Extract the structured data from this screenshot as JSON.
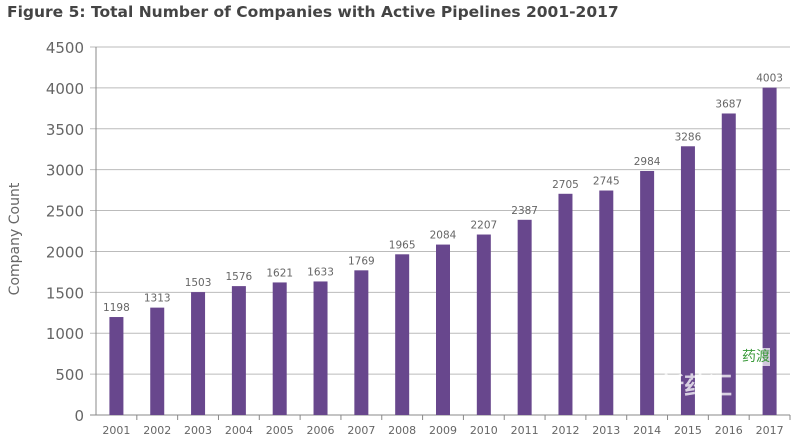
{
  "chart_data": {
    "type": "bar",
    "title": "Figure 5: Total Number of Companies with Active Pipelines 2001-2017",
    "xlabel": "",
    "ylabel": "Company Count",
    "categories": [
      "2001",
      "2002",
      "2003",
      "2004",
      "2005",
      "2006",
      "2007",
      "2008",
      "2009",
      "2010",
      "2011",
      "2012",
      "2013",
      "2014",
      "2015",
      "2016",
      "2017"
    ],
    "values": [
      1198,
      1313,
      1503,
      1576,
      1621,
      1633,
      1769,
      1965,
      2084,
      2207,
      2387,
      2705,
      2745,
      2984,
      3286,
      3687,
      4003
    ],
    "ylim": [
      0,
      4500
    ],
    "yticks": [
      0,
      500,
      1000,
      1500,
      2000,
      2500,
      3000,
      3500,
      4000,
      4500
    ],
    "grid": true,
    "legend": "none",
    "bar_color": "#68478d",
    "data_labels": true
  },
  "watermark": {
    "text1": "新药汇",
    "text2": "药渡"
  }
}
